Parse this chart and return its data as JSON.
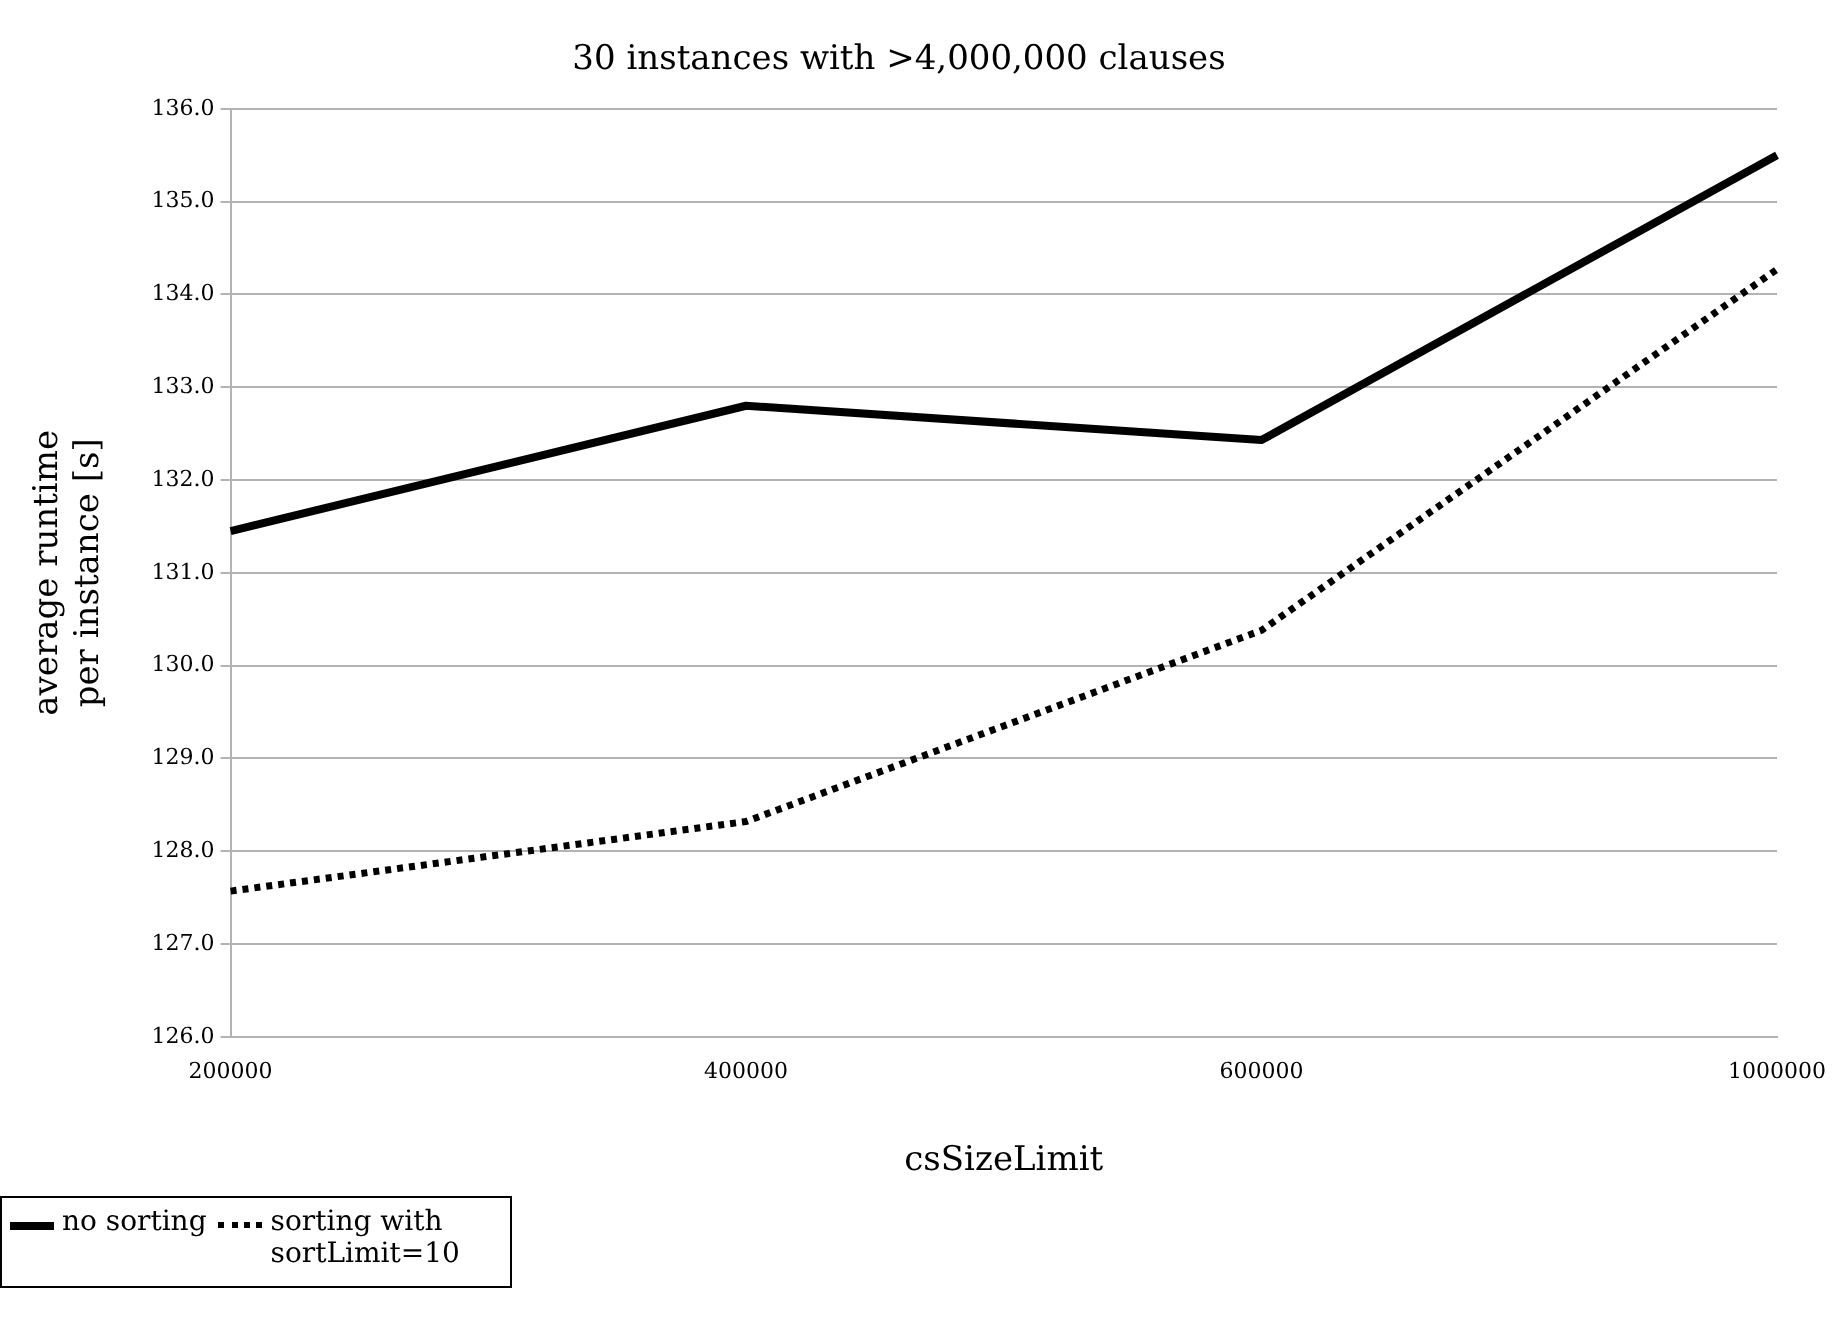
{
  "chart_data": {
    "type": "line",
    "title": "30 instances with >4,000,000 clauses",
    "xlabel": "csSizeLimit",
    "ylabel": "average runtime\nper instance [s]",
    "categories": [
      "200000",
      "400000",
      "600000",
      "1000000"
    ],
    "series": [
      {
        "name": "no sorting",
        "color": "#000000",
        "line_style": "solid",
        "values": [
          131.45,
          132.8,
          132.43,
          135.5
        ]
      },
      {
        "name": "sorting with sortLimit=10",
        "color": "#000000",
        "line_style": "dotted",
        "values": [
          127.57,
          128.32,
          130.38,
          134.27
        ]
      }
    ],
    "ylim": [
      126,
      136
    ],
    "yticks": [
      {
        "value": 126,
        "label": "126.0"
      },
      {
        "value": 127,
        "label": "127.0"
      },
      {
        "value": 128,
        "label": "128.0"
      },
      {
        "value": 129,
        "label": "129.0"
      },
      {
        "value": 130,
        "label": "130.0"
      },
      {
        "value": 131,
        "label": "131.0"
      },
      {
        "value": 132,
        "label": "132.0"
      },
      {
        "value": 133,
        "label": "133.0"
      },
      {
        "value": 134,
        "label": "134.0"
      },
      {
        "value": 135,
        "label": "135.0"
      },
      {
        "value": 136,
        "label": "136.0"
      }
    ],
    "grid": "y",
    "legend": "bottom left",
    "marker": "none"
  }
}
